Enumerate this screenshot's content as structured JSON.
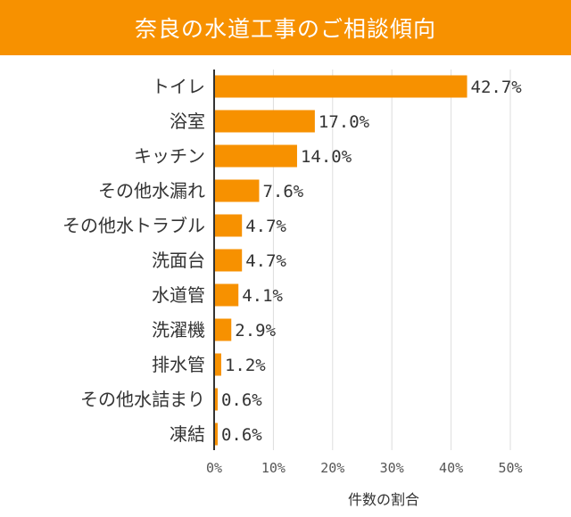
{
  "header": {
    "title": "奈良の水道工事のご相談傾向"
  },
  "colors": {
    "accent": "#f79100",
    "bar": "#f79100",
    "grid": "#dddddd",
    "axis": "#333333"
  },
  "chart_data": {
    "type": "bar",
    "orientation": "horizontal",
    "title": "奈良の水道工事のご相談傾向",
    "xlabel": "件数の割合",
    "ylabel": "",
    "xlim": [
      0,
      50
    ],
    "grid": true,
    "categories": [
      "トイレ",
      "浴室",
      "キッチン",
      "その他水漏れ",
      "その他水トラブル",
      "洗面台",
      "水道管",
      "洗濯機",
      "排水管",
      "その他水詰まり",
      "凍結"
    ],
    "values": [
      42.7,
      17.0,
      14.0,
      7.6,
      4.7,
      4.7,
      4.1,
      2.9,
      1.2,
      0.6,
      0.6
    ],
    "value_labels": [
      "42.7%",
      "17.0%",
      "14.0%",
      "7.6%",
      "4.7%",
      "4.7%",
      "4.1%",
      "2.9%",
      "1.2%",
      "0.6%",
      "0.6%"
    ],
    "ticks": [
      0,
      10,
      20,
      30,
      40,
      50
    ],
    "tick_labels": [
      "0%",
      "10%",
      "20%",
      "30%",
      "40%",
      "50%"
    ]
  }
}
